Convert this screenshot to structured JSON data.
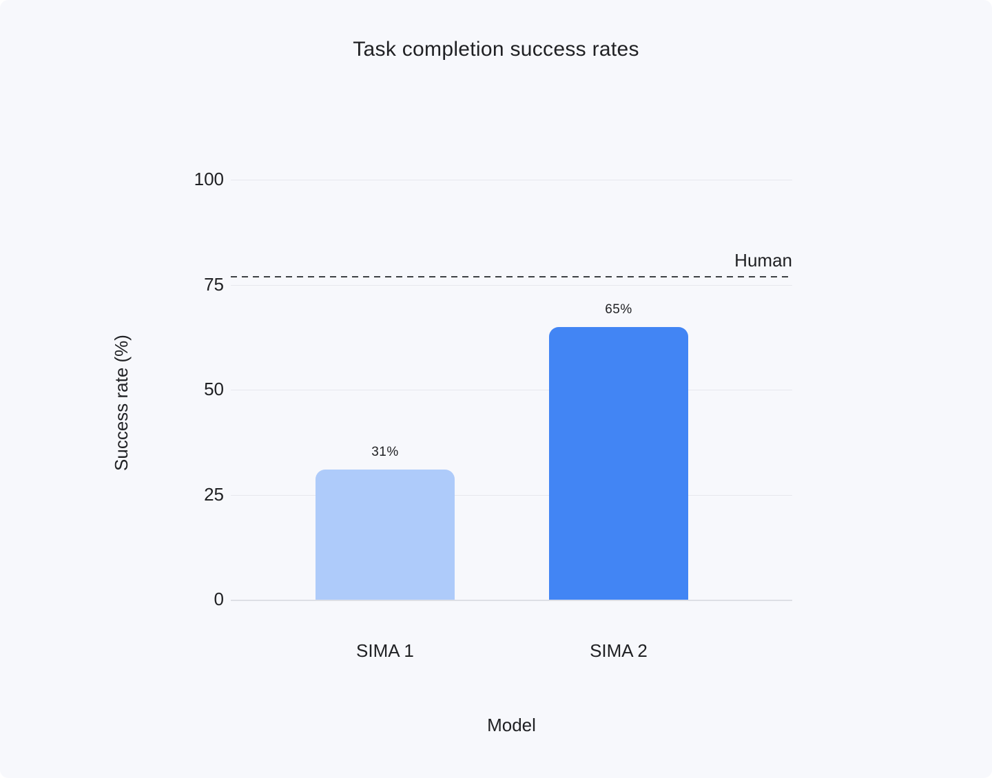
{
  "chart_data": {
    "type": "bar",
    "title": "Task completion success rates",
    "xlabel": "Model",
    "ylabel": "Success rate (%)",
    "categories": [
      "SIMA 1",
      "SIMA 2"
    ],
    "values": [
      31,
      65
    ],
    "value_labels": [
      "31%",
      "65%"
    ],
    "bar_colors": [
      "#AECBFA",
      "#4285F4"
    ],
    "ylim": [
      0,
      100
    ],
    "yticks": [
      0,
      25,
      50,
      75,
      100
    ],
    "grid": true,
    "legend": "none",
    "reference_line": {
      "label": "Human",
      "value": 77
    },
    "colors": {
      "background": "#F7F8FC",
      "gridline": "#E6E8ED",
      "zero_line": "#DDDFE5",
      "reference_line": "#3C4043",
      "text": "#202124"
    }
  }
}
